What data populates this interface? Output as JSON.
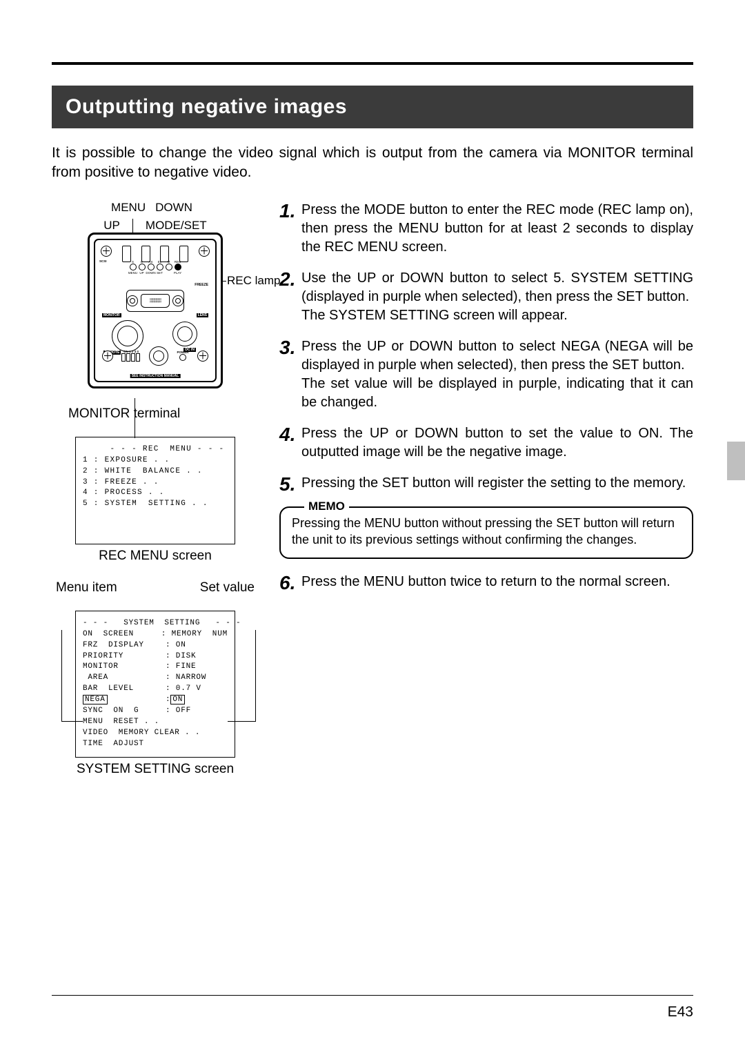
{
  "header": {
    "title": "Outputting negative images"
  },
  "intro": "It is possible to change the video signal which is output from the camera via MONITOR terminal from positive to negative video.",
  "device": {
    "labels": {
      "menu": "MENU",
      "down": "DOWN",
      "up": "UP",
      "mode_set": "MODE/SET",
      "rec_lamp": "REC lamp",
      "monitor_terminal": "MONITOR terminal"
    },
    "tiny": {
      "scsi": "SCSI",
      "S": "S",
      "D": "D",
      "AS": "AS",
      "EL": "EL",
      "M": "M",
      "rec": "REC",
      "menu_b": "MENU",
      "up_b": "UP",
      "down_b": "DOWN",
      "set_b": "SET",
      "play": "PLAY",
      "freeze": "FREEZE",
      "monitor": "MONITOR",
      "lens": "LENS",
      "remote": "REMOTE",
      "dcin": "DC IN",
      "on1234": "ON 1 2 3 4",
      "power": "POWER",
      "see": "SEE INSTRUCTION MANUAL"
    }
  },
  "rec_menu": {
    "title": "- - - REC  MENU - - -",
    "items": [
      "1 : EXPOSURE . .",
      "2 : WHITE  BALANCE . .",
      "3 : FREEZE . .",
      "4 : PROCESS . .",
      "5 : SYSTEM  SETTING . ."
    ],
    "caption": "REC MENU screen"
  },
  "sys_labels": {
    "menu_item": "Menu item",
    "set_value": "Set value"
  },
  "system_setting": {
    "title": "- - -   SYSTEM  SETTING   - - -",
    "rows": [
      {
        "k": "ON  SCREEN",
        "v": ": MEMORY  NUM"
      },
      {
        "k": "FRZ  DISPLAY",
        "v": ": ON"
      },
      {
        "k": "PRIORITY",
        "v": ": DISK"
      },
      {
        "k": "MONITOR",
        "v": ": FINE"
      },
      {
        "k": " AREA",
        "v": ": NARROW"
      },
      {
        "k": "BAR  LEVEL",
        "v": ": 0.7 V"
      },
      {
        "k": "NEGA",
        "v": "ON",
        "boxed": true
      },
      {
        "k": "SYNC  ON  G",
        "v": ": OFF"
      },
      {
        "k": "MENU  RESET . .",
        "v": ""
      },
      {
        "k": "VIDEO  MEMORY CLEAR . .",
        "v": ""
      },
      {
        "k": "TIME  ADJUST",
        "v": ""
      }
    ],
    "caption": "SYSTEM SETTING screen"
  },
  "steps": [
    {
      "n": "1",
      "t": "Press the MODE button to enter the REC mode (REC lamp on), then press the MENU button for at least 2 seconds to display the REC MENU screen."
    },
    {
      "n": "2",
      "t": "Use the UP or DOWN button to select 5. SYSTEM SETTING (displayed in purple when selected), then press the SET button.\nThe SYSTEM SETTING screen will appear."
    },
    {
      "n": "3",
      "t": "Press the UP or DOWN button to select NEGA (NEGA will be displayed in purple when selected), then press the SET button.\nThe set value will be displayed in purple, indicating that it can be changed."
    },
    {
      "n": "4",
      "t": "Press the UP or DOWN button to set the value to ON. The outputted image will be the negative image."
    },
    {
      "n": "5",
      "t": "Pressing the SET button will register the setting to the memory."
    },
    {
      "n": "6",
      "t": "Press the MENU button twice to return to the normal screen."
    }
  ],
  "memo": {
    "title": "MEMO",
    "text": "Pressing the MENU button without pressing the SET button will return the unit to its previous settings without confirming the changes."
  },
  "footer": {
    "page": "E43"
  }
}
